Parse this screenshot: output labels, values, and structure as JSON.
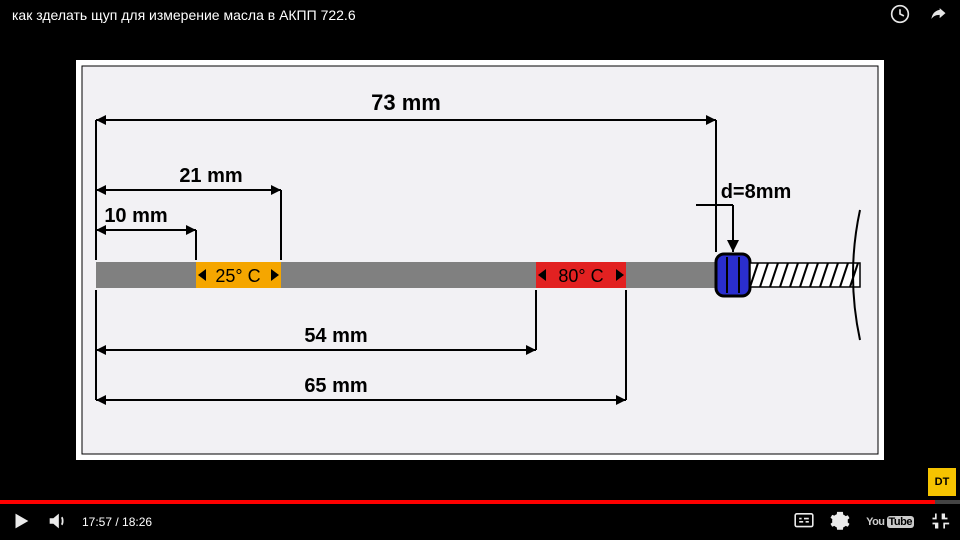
{
  "header": {
    "title": "как зделать щуп для измерение масла в АКПП 722.6"
  },
  "player": {
    "current_time": "17:57",
    "total_time": "18:26",
    "progress_pct": 97.4
  },
  "diagram": {
    "background": "#ffffff",
    "inner_background": "#f2f1f4",
    "stroke": "#000000",
    "stick_color": "#808080",
    "cold_band": {
      "color": "#f5a600",
      "label": "25° C"
    },
    "hot_band": {
      "color": "#e22121",
      "label": "80° C"
    },
    "collar_color": "#2a2ecf",
    "collar_border": "#000000",
    "dims": {
      "top_73": "73 mm",
      "left_21": "21 mm",
      "left_10": "10 mm",
      "d_label": "d=8mm",
      "bot_54": "54 mm",
      "bot_65": "65 mm"
    },
    "font_size_dim": 20,
    "font_size_band": 18,
    "font_family": "Arial"
  },
  "watermark": {
    "text": "DT"
  }
}
